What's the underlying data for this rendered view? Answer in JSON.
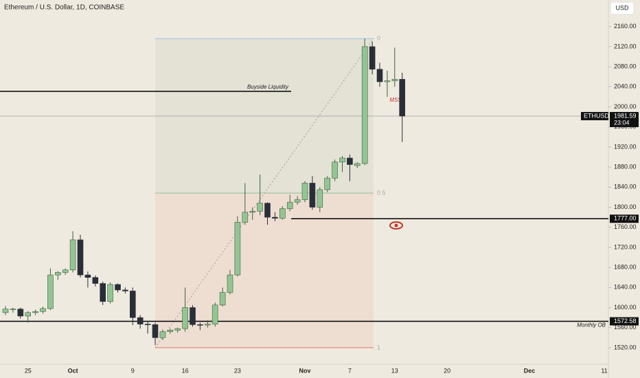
{
  "chart_data": {
    "type": "candlestick",
    "title": "Ethereum / U.S. Dollar, 1D, COINBASE",
    "currency": "USD",
    "symbol": "ETHUSD",
    "last_price": 1981.59,
    "countdown": "23:04",
    "up_color": "#93c593",
    "down_color": "#2a2e39",
    "categories": [
      null,
      null,
      null,
      "25",
      null,
      null,
      null,
      null,
      null,
      "Oct",
      null,
      null,
      null,
      null,
      null,
      null,
      null,
      "9",
      null,
      null,
      null,
      null,
      null,
      null,
      "16",
      null,
      null,
      null,
      null,
      null,
      null,
      "23",
      null,
      null,
      null,
      null,
      null,
      null,
      null,
      null,
      "Nov",
      null,
      null,
      null,
      null,
      null,
      "7",
      null,
      null,
      null,
      null,
      null,
      "13",
      null,
      null,
      null,
      null,
      null,
      null,
      "20",
      null,
      null,
      null,
      null,
      null,
      null,
      null,
      null,
      null,
      null,
      "Dec",
      null,
      null,
      null,
      null,
      null,
      null,
      null,
      null,
      null,
      "11"
    ],
    "open": [
      1590,
      1597,
      1597,
      1583,
      1590,
      1592,
      1598,
      1665,
      1670,
      1675,
      1735,
      1665,
      1660,
      1648,
      1612,
      1646,
      1635,
      1633,
      1580,
      1567,
      1566,
      1540,
      1552,
      1555,
      1558,
      1600,
      1566,
      1565,
      1567,
      1605,
      1630,
      1665,
      1770,
      1790,
      1792,
      1808,
      1780,
      1778,
      1797,
      1810,
      1815,
      1848,
      1800,
      1835,
      1858,
      1890,
      1898,
      1883,
      1887,
      2120,
      2075,
      2050,
      2052,
      2055,
      null,
      null,
      null,
      null,
      null,
      null,
      null,
      null,
      null,
      null,
      null,
      null,
      null,
      null,
      null,
      null,
      null,
      null,
      null,
      null,
      null,
      null,
      null,
      null,
      null,
      null,
      null
    ],
    "high": [
      1603,
      1600,
      1600,
      1593,
      1596,
      1602,
      1678,
      1673,
      1678,
      1752,
      1745,
      1672,
      1664,
      1652,
      1650,
      1648,
      1640,
      1640,
      1585,
      1572,
      1570,
      1556,
      1558,
      1560,
      1640,
      1605,
      1570,
      1575,
      1610,
      1640,
      1675,
      1782,
      1848,
      1800,
      1865,
      1810,
      1790,
      1802,
      1825,
      1822,
      1852,
      1862,
      1840,
      1862,
      1895,
      1902,
      1905,
      1890,
      2136,
      2130,
      2088,
      2072,
      2118,
      2068,
      null,
      null,
      null,
      null,
      null,
      null,
      null,
      null,
      null,
      null,
      null,
      null,
      null,
      null,
      null,
      null,
      null,
      null,
      null,
      null,
      null,
      null,
      null,
      null,
      null,
      null,
      null
    ],
    "low": [
      1585,
      1590,
      1578,
      1570,
      1585,
      1588,
      1595,
      1655,
      1665,
      1670,
      1660,
      1640,
      1642,
      1605,
      1608,
      1630,
      1628,
      1565,
      1558,
      1548,
      1525,
      1535,
      1548,
      1550,
      1552,
      1562,
      1555,
      1560,
      1562,
      1602,
      1626,
      1662,
      1765,
      1775,
      1784,
      1765,
      1772,
      1775,
      1792,
      1805,
      1810,
      1795,
      1790,
      1830,
      1852,
      1870,
      1852,
      1878,
      1884,
      2065,
      2040,
      2020,
      2040,
      1930,
      null,
      null,
      null,
      null,
      null,
      null,
      null,
      null,
      null,
      null,
      null,
      null,
      null,
      null,
      null,
      null,
      null,
      null,
      null,
      null,
      null,
      null,
      null,
      null,
      null,
      null,
      null
    ],
    "close": [
      1597,
      1597,
      1583,
      1590,
      1592,
      1598,
      1665,
      1670,
      1675,
      1735,
      1665,
      1660,
      1648,
      1612,
      1646,
      1635,
      1633,
      1580,
      1567,
      1566,
      1540,
      1552,
      1555,
      1558,
      1600,
      1566,
      1565,
      1567,
      1605,
      1630,
      1665,
      1770,
      1790,
      1792,
      1808,
      1780,
      1778,
      1797,
      1810,
      1815,
      1848,
      1800,
      1835,
      1858,
      1890,
      1898,
      1885,
      1887,
      2120,
      2075,
      2050,
      2052,
      2055,
      1981.59,
      null,
      null,
      null,
      null,
      null,
      null,
      null,
      null,
      null,
      null,
      null,
      null,
      null,
      null,
      null,
      null,
      null,
      null,
      null,
      null,
      null,
      null,
      null,
      null,
      null,
      null,
      null
    ],
    "ylim": [
      1487,
      2213
    ],
    "yticks": [
      {
        "value": 1520,
        "label": "1520.00"
      },
      {
        "value": 1560,
        "label": "1560.00"
      },
      {
        "value": 1600,
        "label": "1600.00"
      },
      {
        "value": 1640,
        "label": "1640.00"
      },
      {
        "value": 1680,
        "label": "1680.00"
      },
      {
        "value": 1720,
        "label": "1720.00"
      },
      {
        "value": 1760,
        "label": "1760.00"
      },
      {
        "value": 1800,
        "label": "1800.00"
      },
      {
        "value": 1840,
        "label": "1840.00"
      },
      {
        "value": 1880,
        "label": "1880.00"
      },
      {
        "value": 1920,
        "label": "1920.00"
      },
      {
        "value": 1960,
        "label": "1960.00"
      },
      {
        "value": 2000,
        "label": "2000.00"
      },
      {
        "value": 2040,
        "label": "2040.00"
      },
      {
        "value": 2080,
        "label": "2080.00"
      },
      {
        "value": 2120,
        "label": "2120.00"
      },
      {
        "value": 2160,
        "label": "2160.00"
      }
    ],
    "buyside": {
      "name": "Buyside Liquidity",
      "value": 2031
    },
    "level_1777": {
      "value": 1777,
      "label": "1777.00"
    },
    "monthly_ob": {
      "name": "Monthly OB",
      "value": 1572.58
    },
    "fib": {
      "high": 2136,
      "low": 1520,
      "ratios": [
        0,
        0.5,
        1
      ]
    },
    "mss": "MSS"
  }
}
